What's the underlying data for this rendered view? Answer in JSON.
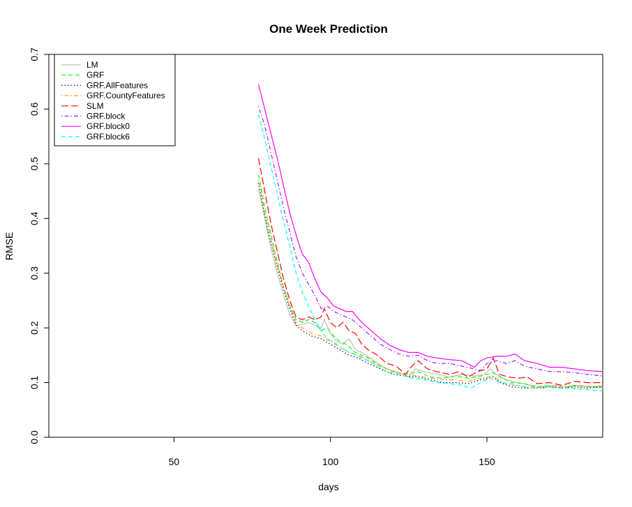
{
  "chart_data": {
    "type": "line",
    "title": "One Week Prediction",
    "xlabel": "days",
    "ylabel": "RMSE",
    "xlim": [
      10,
      187
    ],
    "ylim": [
      0,
      0.7
    ],
    "xticks": [
      50,
      100,
      150
    ],
    "yticks": [
      0.0,
      0.1,
      0.2,
      0.3,
      0.4,
      0.5,
      0.6,
      0.7
    ],
    "yticklabels": [
      "0.0",
      "0.1",
      "0.2",
      "0.3",
      "0.4",
      "0.5",
      "0.6",
      "0.7"
    ],
    "grid": false,
    "legend_position": "top-left",
    "series": [
      {
        "name": "LM",
        "color": "#bebebe",
        "dash": "solid",
        "points": [
          [
            77,
            0.455
          ],
          [
            79,
            0.4
          ],
          [
            81,
            0.345
          ],
          [
            83,
            0.3
          ],
          [
            85,
            0.26
          ],
          [
            87,
            0.225
          ],
          [
            89,
            0.203
          ],
          [
            90,
            0.205
          ],
          [
            93,
            0.21
          ],
          [
            95,
            0.205
          ],
          [
            97,
            0.2
          ],
          [
            98,
            0.215
          ],
          [
            100,
            0.19
          ],
          [
            102,
            0.175
          ],
          [
            104,
            0.17
          ],
          [
            106,
            0.18
          ],
          [
            108,
            0.16
          ],
          [
            110,
            0.155
          ],
          [
            114,
            0.14
          ],
          [
            118,
            0.125
          ],
          [
            122,
            0.118
          ],
          [
            125,
            0.11
          ],
          [
            127,
            0.125
          ],
          [
            130,
            0.12
          ],
          [
            134,
            0.115
          ],
          [
            138,
            0.11
          ],
          [
            142,
            0.115
          ],
          [
            146,
            0.112
          ],
          [
            149,
            0.115
          ],
          [
            151,
            0.125
          ],
          [
            153,
            0.115
          ],
          [
            156,
            0.105
          ],
          [
            160,
            0.1
          ],
          [
            164,
            0.095
          ],
          [
            168,
            0.09
          ],
          [
            172,
            0.095
          ],
          [
            176,
            0.092
          ],
          [
            180,
            0.095
          ],
          [
            183,
            0.092
          ],
          [
            187,
            0.09
          ]
        ]
      },
      {
        "name": "GRF",
        "color": "#00ff00",
        "dash": "dashed",
        "points": [
          [
            77,
            0.48
          ],
          [
            79,
            0.42
          ],
          [
            81,
            0.37
          ],
          [
            83,
            0.32
          ],
          [
            85,
            0.275
          ],
          [
            87,
            0.24
          ],
          [
            89,
            0.215
          ],
          [
            91,
            0.21
          ],
          [
            93,
            0.215
          ],
          [
            95,
            0.21
          ],
          [
            97,
            0.195
          ],
          [
            99,
            0.2
          ],
          [
            101,
            0.185
          ],
          [
            103,
            0.175
          ],
          [
            105,
            0.17
          ],
          [
            108,
            0.155
          ],
          [
            112,
            0.145
          ],
          [
            116,
            0.13
          ],
          [
            120,
            0.12
          ],
          [
            124,
            0.115
          ],
          [
            128,
            0.12
          ],
          [
            132,
            0.11
          ],
          [
            136,
            0.108
          ],
          [
            140,
            0.112
          ],
          [
            144,
            0.108
          ],
          [
            148,
            0.112
          ],
          [
            152,
            0.118
          ],
          [
            155,
            0.108
          ],
          [
            158,
            0.1
          ],
          [
            162,
            0.098
          ],
          [
            166,
            0.092
          ],
          [
            170,
            0.095
          ],
          [
            174,
            0.09
          ],
          [
            178,
            0.095
          ],
          [
            182,
            0.092
          ],
          [
            187,
            0.093
          ]
        ]
      },
      {
        "name": "GRF.AllFeatures",
        "color": "#000080",
        "dash": "dotted",
        "points": [
          [
            77,
            0.465
          ],
          [
            79,
            0.405
          ],
          [
            81,
            0.355
          ],
          [
            83,
            0.31
          ],
          [
            85,
            0.27
          ],
          [
            87,
            0.235
          ],
          [
            89,
            0.205
          ],
          [
            91,
            0.195
          ],
          [
            94,
            0.185
          ],
          [
            97,
            0.18
          ],
          [
            100,
            0.17
          ],
          [
            103,
            0.16
          ],
          [
            106,
            0.15
          ],
          [
            109,
            0.145
          ],
          [
            112,
            0.135
          ],
          [
            116,
            0.125
          ],
          [
            120,
            0.115
          ],
          [
            124,
            0.112
          ],
          [
            128,
            0.11
          ],
          [
            132,
            0.105
          ],
          [
            136,
            0.1
          ],
          [
            140,
            0.1
          ],
          [
            144,
            0.098
          ],
          [
            148,
            0.105
          ],
          [
            152,
            0.11
          ],
          [
            155,
            0.098
          ],
          [
            158,
            0.092
          ],
          [
            162,
            0.09
          ],
          [
            166,
            0.09
          ],
          [
            170,
            0.092
          ],
          [
            174,
            0.09
          ],
          [
            178,
            0.092
          ],
          [
            182,
            0.09
          ],
          [
            187,
            0.092
          ]
        ]
      },
      {
        "name": "GRF.CountyFeatures",
        "color": "#ffa500",
        "dash": "dotdash",
        "points": [
          [
            77,
            0.47
          ],
          [
            79,
            0.41
          ],
          [
            81,
            0.36
          ],
          [
            83,
            0.315
          ],
          [
            85,
            0.275
          ],
          [
            87,
            0.24
          ],
          [
            89,
            0.21
          ],
          [
            91,
            0.2
          ],
          [
            94,
            0.19
          ],
          [
            97,
            0.185
          ],
          [
            100,
            0.175
          ],
          [
            103,
            0.165
          ],
          [
            106,
            0.155
          ],
          [
            109,
            0.15
          ],
          [
            112,
            0.14
          ],
          [
            116,
            0.13
          ],
          [
            120,
            0.12
          ],
          [
            124,
            0.115
          ],
          [
            128,
            0.112
          ],
          [
            132,
            0.108
          ],
          [
            136,
            0.105
          ],
          [
            140,
            0.105
          ],
          [
            144,
            0.102
          ],
          [
            148,
            0.108
          ],
          [
            152,
            0.112
          ],
          [
            155,
            0.1
          ],
          [
            158,
            0.095
          ],
          [
            162,
            0.093
          ],
          [
            166,
            0.092
          ],
          [
            170,
            0.094
          ],
          [
            174,
            0.092
          ],
          [
            178,
            0.094
          ],
          [
            182,
            0.093
          ],
          [
            187,
            0.094
          ]
        ]
      },
      {
        "name": "SLM",
        "color": "#ff0000",
        "dash": "longdash",
        "points": [
          [
            77,
            0.51
          ],
          [
            79,
            0.45
          ],
          [
            81,
            0.39
          ],
          [
            83,
            0.34
          ],
          [
            85,
            0.29
          ],
          [
            87,
            0.25
          ],
          [
            89,
            0.22
          ],
          [
            91,
            0.215
          ],
          [
            93,
            0.22
          ],
          [
            95,
            0.215
          ],
          [
            97,
            0.22
          ],
          [
            98,
            0.235
          ],
          [
            100,
            0.21
          ],
          [
            102,
            0.2
          ],
          [
            104,
            0.21
          ],
          [
            106,
            0.195
          ],
          [
            108,
            0.19
          ],
          [
            110,
            0.17
          ],
          [
            112,
            0.16
          ],
          [
            115,
            0.15
          ],
          [
            118,
            0.135
          ],
          [
            121,
            0.13
          ],
          [
            124,
            0.115
          ],
          [
            126,
            0.13
          ],
          [
            128,
            0.14
          ],
          [
            131,
            0.125
          ],
          [
            134,
            0.12
          ],
          [
            138,
            0.115
          ],
          [
            141,
            0.12
          ],
          [
            144,
            0.11
          ],
          [
            147,
            0.12
          ],
          [
            150,
            0.125
          ],
          [
            152,
            0.145
          ],
          [
            154,
            0.115
          ],
          [
            157,
            0.11
          ],
          [
            160,
            0.108
          ],
          [
            163,
            0.11
          ],
          [
            166,
            0.098
          ],
          [
            170,
            0.1
          ],
          [
            174,
            0.095
          ],
          [
            178,
            0.102
          ],
          [
            182,
            0.1
          ],
          [
            187,
            0.1
          ]
        ]
      },
      {
        "name": "GRF.block",
        "color": "#a020f0",
        "dash": "dotdash",
        "points": [
          [
            77,
            0.605
          ],
          [
            79,
            0.57
          ],
          [
            81,
            0.52
          ],
          [
            83,
            0.47
          ],
          [
            85,
            0.42
          ],
          [
            87,
            0.375
          ],
          [
            89,
            0.33
          ],
          [
            91,
            0.3
          ],
          [
            93,
            0.28
          ],
          [
            95,
            0.26
          ],
          [
            97,
            0.235
          ],
          [
            99,
            0.24
          ],
          [
            101,
            0.23
          ],
          [
            103,
            0.225
          ],
          [
            105,
            0.22
          ],
          [
            107,
            0.215
          ],
          [
            110,
            0.2
          ],
          [
            113,
            0.185
          ],
          [
            116,
            0.17
          ],
          [
            119,
            0.16
          ],
          [
            122,
            0.152
          ],
          [
            125,
            0.148
          ],
          [
            128,
            0.15
          ],
          [
            131,
            0.14
          ],
          [
            134,
            0.135
          ],
          [
            138,
            0.135
          ],
          [
            142,
            0.13
          ],
          [
            146,
            0.125
          ],
          [
            148,
            0.122
          ],
          [
            150,
            0.135
          ],
          [
            153,
            0.14
          ],
          [
            156,
            0.135
          ],
          [
            159,
            0.14
          ],
          [
            162,
            0.13
          ],
          [
            166,
            0.125
          ],
          [
            170,
            0.12
          ],
          [
            174,
            0.12
          ],
          [
            178,
            0.118
          ],
          [
            182,
            0.115
          ],
          [
            187,
            0.112
          ]
        ]
      },
      {
        "name": "GRF.block0",
        "color": "#ff00ff",
        "dash": "solid",
        "points": [
          [
            77,
            0.645
          ],
          [
            79,
            0.6
          ],
          [
            81,
            0.555
          ],
          [
            83,
            0.51
          ],
          [
            85,
            0.46
          ],
          [
            87,
            0.41
          ],
          [
            89,
            0.37
          ],
          [
            91,
            0.335
          ],
          [
            93,
            0.32
          ],
          [
            95,
            0.29
          ],
          [
            97,
            0.265
          ],
          [
            99,
            0.255
          ],
          [
            101,
            0.24
          ],
          [
            103,
            0.235
          ],
          [
            105,
            0.23
          ],
          [
            107,
            0.23
          ],
          [
            110,
            0.21
          ],
          [
            113,
            0.195
          ],
          [
            116,
            0.18
          ],
          [
            119,
            0.168
          ],
          [
            122,
            0.16
          ],
          [
            125,
            0.155
          ],
          [
            128,
            0.155
          ],
          [
            131,
            0.148
          ],
          [
            134,
            0.145
          ],
          [
            138,
            0.142
          ],
          [
            142,
            0.14
          ],
          [
            146,
            0.128
          ],
          [
            148,
            0.14
          ],
          [
            150,
            0.145
          ],
          [
            153,
            0.148
          ],
          [
            156,
            0.148
          ],
          [
            159,
            0.152
          ],
          [
            162,
            0.14
          ],
          [
            166,
            0.135
          ],
          [
            170,
            0.128
          ],
          [
            174,
            0.128
          ],
          [
            178,
            0.125
          ],
          [
            182,
            0.122
          ],
          [
            187,
            0.12
          ]
        ]
      },
      {
        "name": "GRF.block6",
        "color": "#00ffff",
        "dash": "dashed",
        "points": [
          [
            77,
            0.59
          ],
          [
            79,
            0.545
          ],
          [
            81,
            0.495
          ],
          [
            83,
            0.445
          ],
          [
            85,
            0.395
          ],
          [
            87,
            0.35
          ],
          [
            89,
            0.3
          ],
          [
            91,
            0.265
          ],
          [
            93,
            0.24
          ],
          [
            95,
            0.215
          ],
          [
            97,
            0.195
          ],
          [
            99,
            0.18
          ],
          [
            101,
            0.175
          ],
          [
            103,
            0.165
          ],
          [
            106,
            0.155
          ],
          [
            109,
            0.148
          ],
          [
            112,
            0.14
          ],
          [
            115,
            0.13
          ],
          [
            118,
            0.12
          ],
          [
            122,
            0.115
          ],
          [
            126,
            0.108
          ],
          [
            130,
            0.105
          ],
          [
            134,
            0.1
          ],
          [
            138,
            0.098
          ],
          [
            142,
            0.095
          ],
          [
            145,
            0.09
          ],
          [
            148,
            0.1
          ],
          [
            151,
            0.108
          ],
          [
            154,
            0.1
          ],
          [
            157,
            0.098
          ],
          [
            160,
            0.095
          ],
          [
            164,
            0.09
          ],
          [
            168,
            0.092
          ],
          [
            172,
            0.09
          ],
          [
            176,
            0.09
          ],
          [
            180,
            0.088
          ],
          [
            184,
            0.086
          ],
          [
            187,
            0.085
          ]
        ]
      }
    ]
  }
}
